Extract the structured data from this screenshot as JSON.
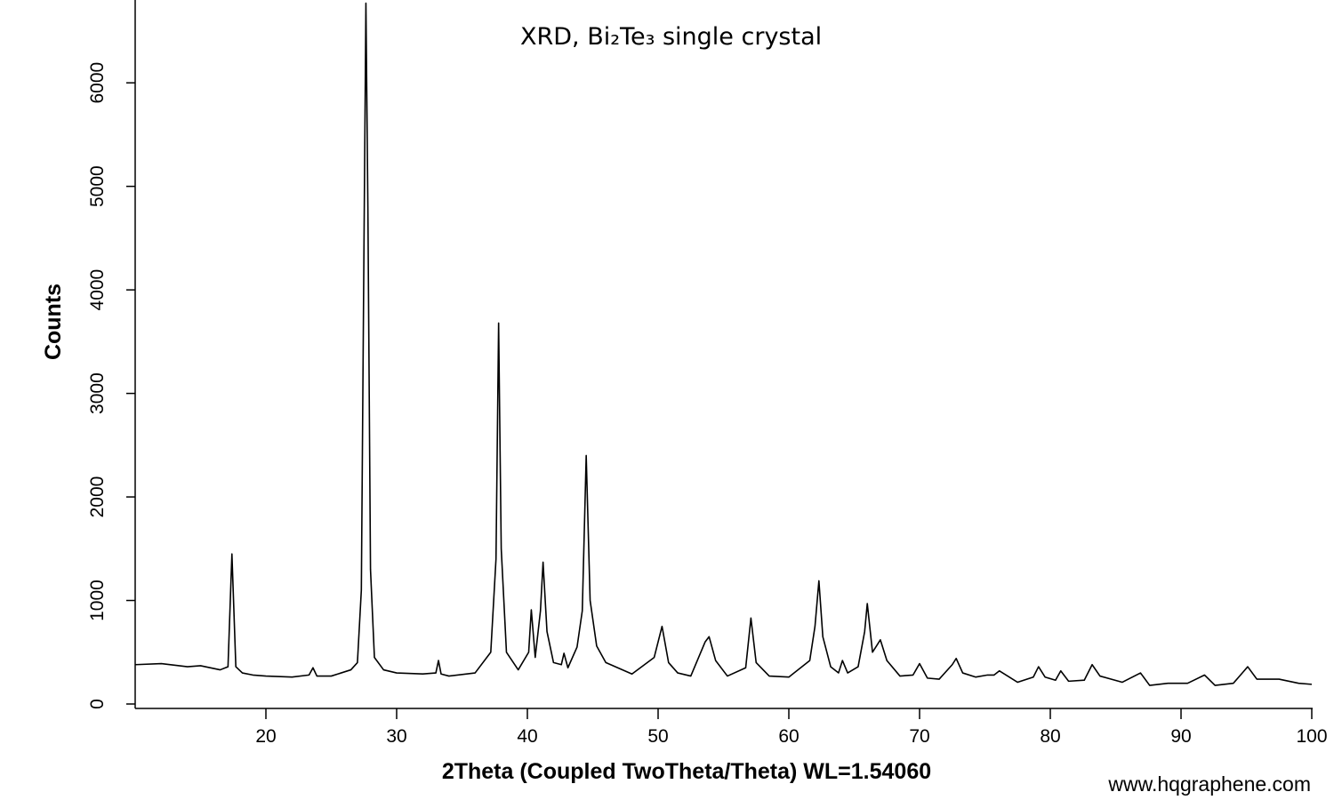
{
  "chart_data": {
    "type": "line",
    "title": "XRD, Bi₂Te₃ single crystal",
    "x_label": "2Theta (Coupled TwoTheta/Theta) WL=1.54060",
    "y_label": "Counts",
    "watermark": "www.hqgraphene.com",
    "color": "#000000",
    "xlim": [
      10,
      100
    ],
    "xticks": [
      20,
      30,
      40,
      50,
      60,
      70,
      80,
      90,
      100
    ],
    "ylim": [
      0,
      6800
    ],
    "yticks": [
      0,
      1000,
      2000,
      3000,
      4000,
      5000,
      6000
    ],
    "x": [
      10,
      12,
      14,
      15,
      16.5,
      17.1,
      17.4,
      17.7,
      18.2,
      19,
      20,
      22,
      23.3,
      23.6,
      23.9,
      25,
      26.5,
      27,
      27.3,
      27.5,
      27.65,
      27.8,
      28,
      28.3,
      29,
      30,
      32,
      33.0,
      33.2,
      33.4,
      34,
      36,
      37.2,
      37.6,
      37.8,
      38.0,
      38.4,
      39.3,
      40.1,
      40.3,
      40.6,
      41.0,
      41.2,
      41.5,
      42.0,
      42.6,
      42.8,
      43.1,
      43.8,
      44.2,
      44.5,
      44.8,
      45.3,
      46,
      48,
      49.7,
      50.3,
      50.8,
      51.5,
      52.5,
      53.6,
      53.9,
      54.4,
      55.3,
      56.7,
      57.1,
      57.5,
      58.5,
      60,
      61.6,
      62.0,
      62.3,
      62.6,
      63.2,
      63.8,
      64.1,
      64.5,
      65.3,
      65.8,
      66.0,
      66.4,
      66.7,
      67.0,
      67.5,
      68.5,
      69.5,
      70.0,
      70.6,
      71.5,
      72.5,
      72.8,
      73.3,
      74.3,
      75.2,
      75.7,
      76.1,
      77.5,
      78.7,
      79.1,
      79.6,
      80.4,
      80.8,
      81.4,
      82.6,
      83.2,
      83.8,
      85.5,
      86.9,
      87.6,
      89,
      90.5,
      91.8,
      92.6,
      94,
      95.1,
      95.8,
      97.5,
      99,
      100
    ],
    "values": [
      380,
      390,
      360,
      370,
      330,
      360,
      1450,
      360,
      300,
      280,
      270,
      260,
      280,
      350,
      270,
      270,
      330,
      400,
      1100,
      4400,
      6770,
      4800,
      1300,
      450,
      330,
      300,
      290,
      300,
      420,
      290,
      270,
      300,
      500,
      1400,
      3680,
      1500,
      500,
      330,
      500,
      910,
      450,
      900,
      1370,
      700,
      400,
      380,
      490,
      350,
      550,
      900,
      2400,
      1000,
      560,
      400,
      290,
      450,
      750,
      400,
      300,
      270,
      600,
      650,
      420,
      270,
      350,
      830,
      400,
      270,
      260,
      420,
      750,
      1190,
      650,
      360,
      300,
      420,
      300,
      360,
      700,
      970,
      500,
      560,
      620,
      420,
      270,
      280,
      390,
      250,
      240,
      380,
      440,
      300,
      260,
      280,
      280,
      320,
      210,
      260,
      360,
      260,
      230,
      320,
      220,
      230,
      380,
      270,
      210,
      300,
      180,
      200,
      200,
      280,
      180,
      200,
      360,
      240,
      240,
      200,
      190
    ]
  }
}
